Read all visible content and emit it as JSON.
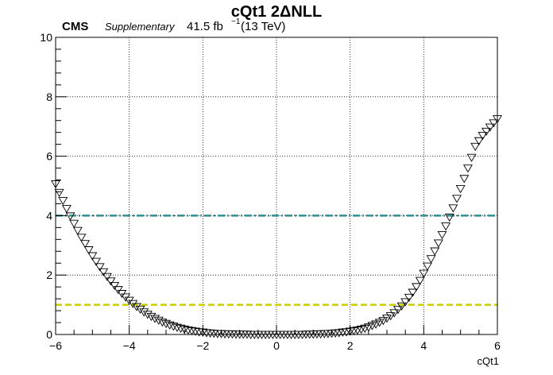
{
  "chart_data": {
    "type": "scatter",
    "title": "cQt1 2ΔNLL",
    "xlabel": "cQt1",
    "ylabel": "",
    "xlim": [
      -6,
      6
    ],
    "ylim": [
      0,
      10
    ],
    "x_ticks": [
      "−6",
      "−4",
      "−2",
      "0",
      "2",
      "4",
      "6"
    ],
    "y_ticks": [
      "0",
      "2",
      "4",
      "6",
      "8",
      "10"
    ],
    "grid": true,
    "labels": {
      "experiment": "CMS",
      "status": "Supplementary",
      "lumi_value": "41.5 fb",
      "lumi_exponent": "−1",
      "energy": "(13 TeV)"
    },
    "reference_lines": [
      {
        "y": 1,
        "color": "#cccc00",
        "style": "dashed"
      },
      {
        "y": 4,
        "color": "#2f8f8f",
        "style": "dash-dot"
      }
    ],
    "marker": "open-triangle-down",
    "marker_color": "#000000",
    "series": [
      {
        "x": [
          -6.0,
          -5.9,
          -5.8,
          -5.7,
          -5.6,
          -5.5,
          -5.4,
          -5.3,
          -5.2,
          -5.1,
          -5.0,
          -4.9,
          -4.8,
          -4.7,
          -4.6,
          -4.5,
          -4.4,
          -4.3,
          -4.2,
          -4.1,
          -4.0,
          -3.9,
          -3.8,
          -3.7,
          -3.6,
          -3.5,
          -3.4,
          -3.3,
          -3.2,
          -3.1,
          -3.0,
          -2.9,
          -2.8,
          -2.7,
          -2.6,
          -2.5,
          -2.4,
          -2.3,
          -2.2,
          -2.1,
          -2.0,
          -1.9,
          -1.8,
          -1.7,
          -1.6,
          -1.5,
          -1.4,
          -1.3,
          -1.2,
          -1.1,
          -1.0,
          -0.9,
          -0.8,
          -0.7,
          -0.6,
          -0.5,
          -0.4,
          -0.3,
          -0.2,
          -0.1,
          0.0,
          0.1,
          0.2,
          0.3,
          0.4,
          0.5,
          0.6,
          0.7,
          0.8,
          0.9,
          1.0,
          1.1,
          1.2,
          1.3,
          1.4,
          1.5,
          1.6,
          1.7,
          1.8,
          1.9,
          2.0,
          2.1,
          2.2,
          2.3,
          2.4,
          2.5,
          2.6,
          2.7,
          2.8,
          2.9,
          3.0,
          3.1,
          3.2,
          3.3,
          3.4,
          3.5,
          3.6,
          3.7,
          3.8,
          3.9,
          4.0,
          4.1,
          4.2,
          4.3,
          4.4,
          4.5,
          4.6,
          4.7,
          4.8,
          4.9,
          5.0,
          5.1,
          5.2,
          5.3,
          5.4,
          5.5,
          5.6,
          5.7,
          5.8,
          5.9,
          6.0
        ],
        "y": [
          5.07,
          4.78,
          4.51,
          4.24,
          3.99,
          3.74,
          3.5,
          3.27,
          3.06,
          2.85,
          2.65,
          2.46,
          2.28,
          2.11,
          1.95,
          1.8,
          1.65,
          1.51,
          1.38,
          1.26,
          1.15,
          1.04,
          0.94,
          0.85,
          0.76,
          0.68,
          0.61,
          0.54,
          0.48,
          0.42,
          0.37,
          0.32,
          0.28,
          0.24,
          0.21,
          0.18,
          0.15,
          0.13,
          0.11,
          0.09,
          0.08,
          0.06,
          0.05,
          0.04,
          0.03,
          0.03,
          0.02,
          0.02,
          0.02,
          0.01,
          0.01,
          0.01,
          0.01,
          0.0,
          0.0,
          0.0,
          0.0,
          0.0,
          0.0,
          0.0,
          0.0,
          0.0,
          0.0,
          0.0,
          0.0,
          0.0,
          0.0,
          0.0,
          0.01,
          0.01,
          0.01,
          0.02,
          0.02,
          0.03,
          0.03,
          0.04,
          0.05,
          0.06,
          0.08,
          0.09,
          0.11,
          0.13,
          0.15,
          0.18,
          0.21,
          0.25,
          0.3,
          0.35,
          0.41,
          0.47,
          0.55,
          0.63,
          0.73,
          0.84,
          0.96,
          1.1,
          1.25,
          1.42,
          1.61,
          1.82,
          2.06,
          2.3,
          2.55,
          2.81,
          3.08,
          3.36,
          3.65,
          3.95,
          4.26,
          4.58,
          4.91,
          5.25,
          5.6,
          5.96,
          6.33,
          6.52,
          6.7,
          6.84,
          6.98,
          7.12,
          7.26
        ]
      }
    ]
  }
}
